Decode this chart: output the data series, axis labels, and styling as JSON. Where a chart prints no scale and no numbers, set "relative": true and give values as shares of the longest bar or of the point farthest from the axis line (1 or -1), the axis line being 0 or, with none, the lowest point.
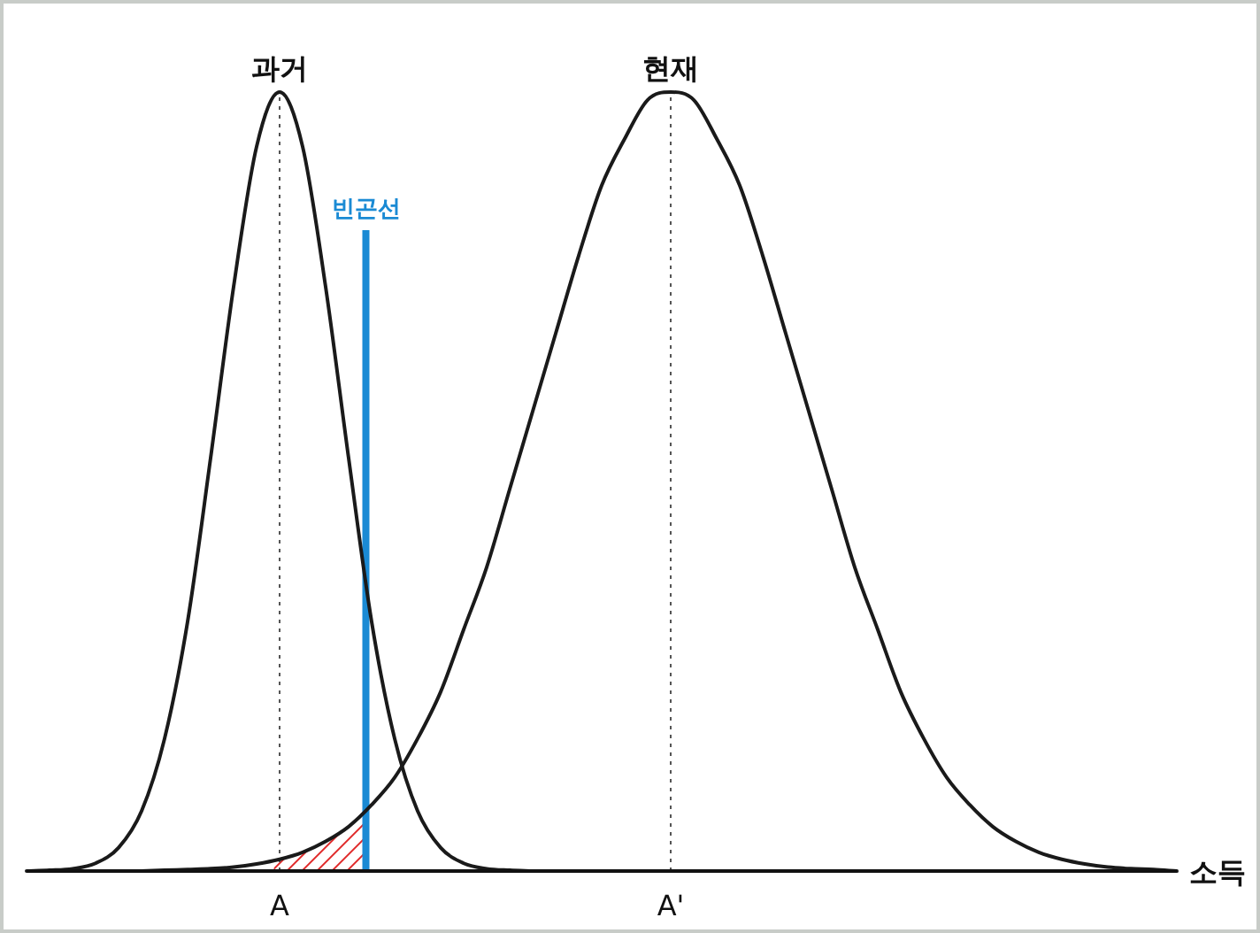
{
  "chart_data": {
    "type": "line",
    "relative": true,
    "xlabel": "소득",
    "categories": [
      null,
      null,
      null,
      null,
      null,
      null,
      null,
      null,
      null,
      null,
      null,
      "A",
      null,
      null,
      null,
      null,
      null,
      null,
      null,
      null,
      null,
      null,
      null,
      null,
      null,
      null,
      null,
      null,
      "A'",
      null,
      null,
      null,
      null,
      null,
      null,
      null,
      null,
      null,
      null,
      null,
      null,
      null,
      null,
      null,
      null,
      null,
      null,
      null,
      null,
      null,
      null
    ],
    "series": [
      {
        "name": "과거",
        "color": "#1a1a1a",
        "values": [
          0,
          0.001,
          0.003,
          0.01,
          0.03,
          0.077,
          0.17,
          0.32,
          0.53,
          0.75,
          0.93,
          1,
          0.93,
          0.75,
          0.53,
          0.32,
          0.17,
          0.077,
          0.03,
          0.01,
          0.003,
          0.001,
          0,
          null,
          null,
          null,
          null,
          null,
          null,
          null,
          null,
          null,
          null,
          null,
          null,
          null,
          null,
          null,
          null,
          null,
          null,
          null,
          null,
          null,
          null,
          null,
          null,
          null,
          null,
          null,
          null
        ]
      },
      {
        "name": "현재",
        "color": "#1a1a1a",
        "values": [
          null,
          null,
          null,
          null,
          null,
          0,
          0.001,
          0.002,
          0.003,
          0.005,
          0.009,
          0.015,
          0.024,
          0.038,
          0.057,
          0.085,
          0.12,
          0.17,
          0.23,
          0.31,
          0.39,
          0.49,
          0.59,
          0.69,
          0.79,
          0.88,
          0.94,
          0.99,
          1,
          0.99,
          0.94,
          0.88,
          0.79,
          0.69,
          0.59,
          0.49,
          0.39,
          0.31,
          0.23,
          0.17,
          0.12,
          0.085,
          0.057,
          0.038,
          0.024,
          0.015,
          0.009,
          0.005,
          0.003,
          0.002,
          0
        ]
      }
    ],
    "ref_lines": [
      {
        "axis": "x",
        "value": "A",
        "color": "#555555",
        "line_style": "dotted"
      },
      {
        "axis": "x",
        "value": "A'",
        "color": "#555555",
        "line_style": "dotted"
      }
    ],
    "annotations": [
      "빈곤선"
    ]
  }
}
